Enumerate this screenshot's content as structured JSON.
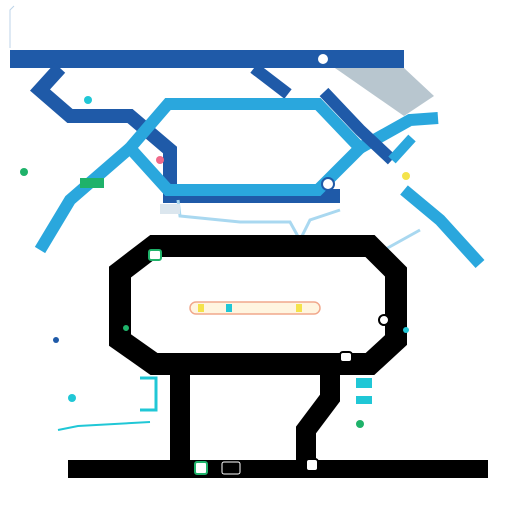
{
  "title": "",
  "subtitle": "",
  "colors": {
    "line_dark_blue": "#1f5aa8",
    "line_light_blue": "#2aa7dd",
    "line_grey": "#b8c6cf",
    "line_black": "#000000",
    "accent_pink": "#f06a8a",
    "accent_green": "#1fb26a",
    "accent_yellow": "#f4e34b",
    "accent_cyan": "#20c7d6"
  },
  "icons": {
    "station": "station-marker",
    "route_badge": "route-badge-icon",
    "connector": "connector-dot-icon"
  },
  "labels": {
    "top_left": "",
    "top_left_sub": "",
    "left_1": "",
    "left_2": "",
    "left_3": "",
    "center_1": "",
    "center_2": "",
    "right_1": "",
    "right_2": "",
    "bottom_left_1": "",
    "bottom_left_2": "",
    "bottom_left_3": "",
    "bottom_right_1": "",
    "bottom_right_2": ""
  }
}
